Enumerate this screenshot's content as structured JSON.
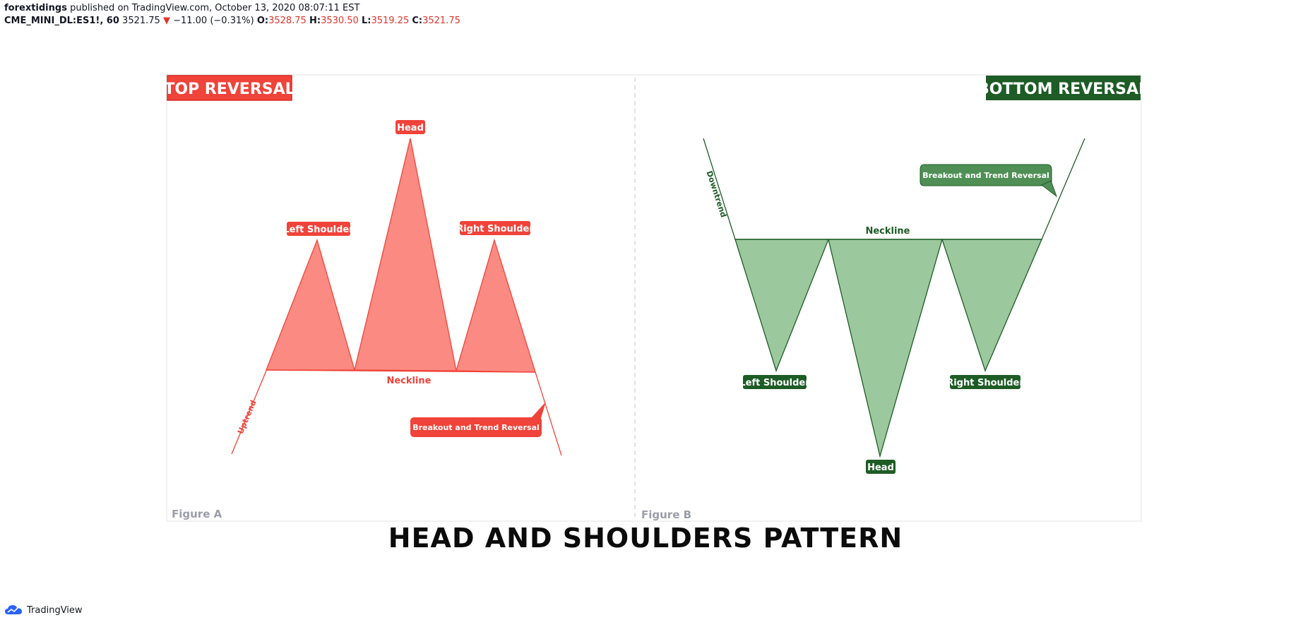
{
  "header": {
    "author": "forextidings",
    "published_text": "published on TradingView.com, October 13, 2020 08:07:11 EST",
    "symbol": "CME_MINI_DL:ES1!, 60",
    "price": "3521.75",
    "change": "−11.00 (−0.31%)",
    "o_label": "O:",
    "o_value": "3528.75",
    "h_label": "H:",
    "h_value": "3530.50",
    "l_label": "L:",
    "l_value": "3519.25",
    "c_label": "C:",
    "c_value": "3521.75"
  },
  "figure_a": {
    "title": "TOP REVERSAL",
    "caption": "Figure A",
    "labels": {
      "head": "Head",
      "left_shoulder": "Left Shoulder",
      "right_shoulder": "Right Shoulder",
      "neckline": "Neckline",
      "trend": "Uptrend",
      "callout": "Breakout and Trend Reversal"
    }
  },
  "figure_b": {
    "title": "BOTTOM REVERSAL",
    "caption": "Figure B",
    "labels": {
      "head": "Head",
      "left_shoulder": "Left Shoulder",
      "right_shoulder": "Right Shoulder",
      "neckline": "Neckline",
      "trend": "Downtrend",
      "callout": "Breakout and Trend Reversal"
    }
  },
  "footer": {
    "title": "HEAD AND SHOULDERS PATTERN",
    "brand": "TradingView"
  },
  "colors": {
    "red": "#f0433a",
    "red_fill": "#fb8b82",
    "green_dark": "#1e5c26",
    "green_fill": "#9cc89d",
    "green_callout": "#4f8f55"
  }
}
